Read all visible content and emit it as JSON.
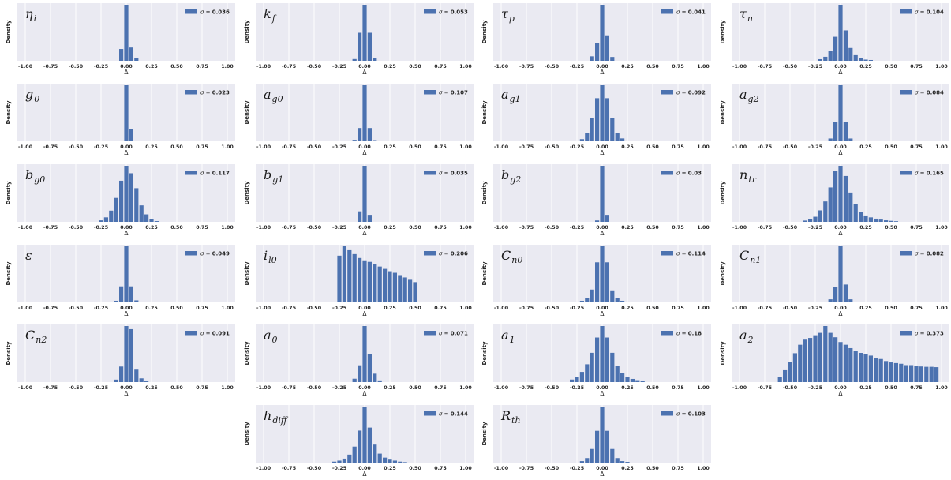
{
  "figure": {
    "y_label": "Density",
    "x_label": "Δ",
    "legend_symbol": "σ =",
    "bar_color": "#4C72B0",
    "background": "#EAEAF2",
    "x_ticks": [
      "-1.00",
      "-0.75",
      "-0.50",
      "-0.25",
      "0.00",
      "0.25",
      "0.50",
      "0.75",
      "1.00"
    ]
  },
  "chart_data": [
    {
      "type": "bar",
      "title_base": "η",
      "title_sub": "i",
      "sigma": "0.036",
      "xlim": [
        -1.0,
        1.0
      ],
      "grid": true,
      "legend_position": "top-right",
      "bin_width": 0.05,
      "bin_centers": [
        -0.05,
        0.0,
        0.05,
        0.1
      ],
      "densities": [
        4.0,
        19.0,
        4.5,
        0.8
      ]
    },
    {
      "type": "bar",
      "title_base": "k",
      "title_sub": "f",
      "sigma": "0.053",
      "xlim": [
        -1.0,
        1.0
      ],
      "grid": true,
      "legend_position": "top-right",
      "bin_width": 0.05,
      "bin_centers": [
        -0.1,
        -0.05,
        0.0,
        0.05,
        0.1
      ],
      "densities": [
        0.4,
        6.5,
        13.0,
        6.5,
        0.7
      ]
    },
    {
      "type": "bar",
      "title_base": "τ",
      "title_sub": "p",
      "sigma": "0.041",
      "xlim": [
        -1.0,
        1.0
      ],
      "grid": true,
      "legend_position": "top-right",
      "bin_width": 0.05,
      "bin_centers": [
        -0.1,
        -0.05,
        0.0,
        0.05,
        0.1
      ],
      "densities": [
        0.7,
        2.8,
        8.8,
        4.0,
        0.6
      ]
    },
    {
      "type": "bar",
      "title_base": "τ",
      "title_sub": "n",
      "sigma": "0.104",
      "xlim": [
        -1.0,
        1.0
      ],
      "grid": true,
      "legend_position": "top-right",
      "bin_width": 0.05,
      "bin_centers": [
        -0.2,
        -0.15,
        -0.1,
        -0.05,
        0.0,
        0.05,
        0.1,
        0.15,
        0.2,
        0.25,
        0.3
      ],
      "densities": [
        0.2,
        0.5,
        1.2,
        3.0,
        7.0,
        3.8,
        1.6,
        0.7,
        0.3,
        0.15,
        0.1
      ]
    },
    {
      "type": "bar",
      "title_base": "g",
      "title_sub": "0",
      "sigma": "0.023",
      "xlim": [
        -1.0,
        1.0
      ],
      "grid": true,
      "legend_position": "top-right",
      "bin_width": 0.05,
      "bin_centers": [
        0.0,
        0.05
      ],
      "densities": [
        30.0,
        6.5
      ]
    },
    {
      "type": "bar",
      "title_base": "a",
      "title_sub": "g0",
      "sigma": "0.107",
      "xlim": [
        -1.0,
        1.0
      ],
      "grid": true,
      "legend_position": "top-right",
      "bin_width": 0.05,
      "bin_centers": [
        -0.1,
        -0.05,
        0.0,
        0.05,
        0.1
      ],
      "densities": [
        0.5,
        4.5,
        19.0,
        4.5,
        0.4
      ]
    },
    {
      "type": "bar",
      "title_base": "a",
      "title_sub": "g1",
      "sigma": "0.092",
      "xlim": [
        -1.0,
        1.0
      ],
      "grid": true,
      "legend_position": "top-right",
      "bin_width": 0.05,
      "bin_centers": [
        -0.2,
        -0.15,
        -0.1,
        -0.05,
        0.0,
        0.05,
        0.1,
        0.15,
        0.2,
        0.25
      ],
      "densities": [
        0.3,
        1.2,
        3.2,
        6.0,
        7.8,
        6.0,
        3.2,
        1.2,
        0.4,
        0.1
      ]
    },
    {
      "type": "bar",
      "title_base": "a",
      "title_sub": "g2",
      "sigma": "0.084",
      "xlim": [
        -1.0,
        1.0
      ],
      "grid": true,
      "legend_position": "top-right",
      "bin_width": 0.05,
      "bin_centers": [
        -0.1,
        -0.05,
        0.0,
        0.05,
        0.1
      ],
      "densities": [
        0.5,
        3.5,
        10.0,
        3.5,
        0.5
      ]
    },
    {
      "type": "bar",
      "title_base": "b",
      "title_sub": "g0",
      "sigma": "0.117",
      "xlim": [
        -1.0,
        1.0
      ],
      "grid": true,
      "legend_position": "top-right",
      "bin_width": 0.05,
      "bin_centers": [
        -0.25,
        -0.2,
        -0.15,
        -0.1,
        -0.05,
        0.0,
        0.05,
        0.1,
        0.15,
        0.2,
        0.25,
        0.3
      ],
      "densities": [
        0.2,
        0.6,
        1.5,
        3.2,
        5.5,
        7.5,
        6.5,
        4.5,
        2.2,
        1.0,
        0.4,
        0.1
      ]
    },
    {
      "type": "bar",
      "title_base": "b",
      "title_sub": "g1",
      "sigma": "0.035",
      "xlim": [
        -1.0,
        1.0
      ],
      "grid": true,
      "legend_position": "top-right",
      "bin_width": 0.05,
      "bin_centers": [
        -0.05,
        0.0,
        0.05
      ],
      "densities": [
        3.0,
        16.0,
        2.0
      ]
    },
    {
      "type": "bar",
      "title_base": "b",
      "title_sub": "g2",
      "sigma": "0.03",
      "xlim": [
        -1.0,
        1.0
      ],
      "grid": true,
      "legend_position": "top-right",
      "bin_width": 0.05,
      "bin_centers": [
        -0.05,
        0.0,
        0.05
      ],
      "densities": [
        1.0,
        40.0,
        5.0
      ]
    },
    {
      "type": "bar",
      "title_base": "n",
      "title_sub": "tr",
      "sigma": "0.165",
      "xlim": [
        -1.0,
        1.0
      ],
      "grid": true,
      "legend_position": "top-right",
      "bin_width": 0.05,
      "bin_centers": [
        -0.35,
        -0.3,
        -0.25,
        -0.2,
        -0.15,
        -0.1,
        -0.05,
        0.0,
        0.05,
        0.1,
        0.15,
        0.2,
        0.25,
        0.3,
        0.35,
        0.4,
        0.45,
        0.5,
        0.55
      ],
      "densities": [
        0.1,
        0.2,
        0.4,
        0.9,
        1.6,
        2.7,
        4.0,
        4.4,
        3.6,
        2.3,
        1.4,
        0.8,
        0.5,
        0.35,
        0.25,
        0.18,
        0.12,
        0.08,
        0.05
      ]
    },
    {
      "type": "bar",
      "title_base": "ε",
      "title_sub": "",
      "sigma": "0.049",
      "xlim": [
        -1.0,
        1.0
      ],
      "grid": true,
      "legend_position": "top-right",
      "bin_width": 0.05,
      "bin_centers": [
        -0.1,
        -0.05,
        0.0,
        0.05,
        0.1
      ],
      "densities": [
        0.4,
        4.0,
        14.0,
        4.0,
        0.5
      ]
    },
    {
      "type": "bar",
      "title_base": "i",
      "title_sub": "l0",
      "sigma": "0.206",
      "xlim": [
        -1.0,
        1.0
      ],
      "grid": true,
      "legend_position": "top-right",
      "bin_width": 0.05,
      "bin_centers": [
        -0.25,
        -0.2,
        -0.15,
        -0.1,
        -0.05,
        0.0,
        0.05,
        0.1,
        0.15,
        0.2,
        0.25,
        0.3,
        0.35,
        0.4,
        0.45,
        0.5
      ],
      "densities": [
        3.0,
        3.6,
        3.35,
        3.1,
        2.85,
        2.7,
        2.6,
        2.45,
        2.3,
        2.15,
        2.0,
        1.9,
        1.75,
        1.6,
        1.45,
        1.3
      ]
    },
    {
      "type": "bar",
      "title_base": "C",
      "title_sub": "n0",
      "sigma": "0.114",
      "xlim": [
        -1.0,
        1.0
      ],
      "grid": true,
      "legend_position": "top-right",
      "bin_width": 0.05,
      "bin_centers": [
        -0.2,
        -0.15,
        -0.1,
        -0.05,
        0.0,
        0.05,
        0.1,
        0.15,
        0.2,
        0.25
      ],
      "densities": [
        0.2,
        0.5,
        1.6,
        5.0,
        7.0,
        5.0,
        1.5,
        0.5,
        0.2,
        0.1
      ]
    },
    {
      "type": "bar",
      "title_base": "C",
      "title_sub": "n1",
      "sigma": "0.082",
      "xlim": [
        -1.0,
        1.0
      ],
      "grid": true,
      "legend_position": "top-right",
      "bin_width": 0.05,
      "bin_centers": [
        -0.1,
        -0.05,
        0.0,
        0.05,
        0.1
      ],
      "densities": [
        0.6,
        3.0,
        11.0,
        3.5,
        0.6
      ]
    },
    {
      "type": "bar",
      "title_base": "C",
      "title_sub": "n2",
      "sigma": "0.091",
      "xlim": [
        -1.0,
        1.0
      ],
      "grid": true,
      "legend_position": "top-right",
      "bin_width": 0.05,
      "bin_centers": [
        -0.1,
        -0.05,
        0.0,
        0.05,
        0.1,
        0.15,
        0.2
      ],
      "densities": [
        0.4,
        2.5,
        9.0,
        8.5,
        2.0,
        0.6,
        0.2
      ]
    },
    {
      "type": "bar",
      "title_base": "a",
      "title_sub": "0",
      "sigma": "0.071",
      "xlim": [
        -1.0,
        1.0
      ],
      "grid": true,
      "legend_position": "top-right",
      "bin_width": 0.05,
      "bin_centers": [
        -0.1,
        -0.05,
        0.0,
        0.05,
        0.1,
        0.15
      ],
      "densities": [
        0.6,
        3.0,
        10.0,
        5.0,
        1.5,
        0.3
      ]
    },
    {
      "type": "bar",
      "title_base": "a",
      "title_sub": "1",
      "sigma": "0.18",
      "xlim": [
        -1.0,
        1.0
      ],
      "grid": true,
      "legend_position": "top-right",
      "bin_width": 0.05,
      "bin_centers": [
        -0.3,
        -0.25,
        -0.2,
        -0.15,
        -0.1,
        -0.05,
        0.0,
        0.05,
        0.1,
        0.15,
        0.2,
        0.25,
        0.3,
        0.35,
        0.4
      ],
      "densities": [
        0.2,
        0.4,
        0.8,
        1.4,
        2.3,
        3.5,
        4.4,
        3.5,
        2.3,
        1.3,
        0.7,
        0.4,
        0.25,
        0.15,
        0.1
      ]
    },
    {
      "type": "bar",
      "title_base": "a",
      "title_sub": "2",
      "sigma": "0.373",
      "xlim": [
        -1.0,
        1.0
      ],
      "grid": true,
      "legend_position": "top-right",
      "bin_width": 0.05,
      "bin_centers": [
        -0.6,
        -0.55,
        -0.5,
        -0.45,
        -0.4,
        -0.35,
        -0.3,
        -0.25,
        -0.2,
        -0.15,
        -0.1,
        -0.05,
        0.0,
        0.05,
        0.1,
        0.15,
        0.2,
        0.25,
        0.3,
        0.35,
        0.4,
        0.45,
        0.5,
        0.55,
        0.6,
        0.65,
        0.7,
        0.75,
        0.8,
        0.85,
        0.9,
        0.95
      ],
      "densities": [
        0.15,
        0.35,
        0.6,
        0.85,
        1.1,
        1.25,
        1.3,
        1.38,
        1.45,
        1.65,
        1.45,
        1.32,
        1.18,
        1.1,
        1.0,
        0.92,
        0.86,
        0.82,
        0.78,
        0.72,
        0.68,
        0.62,
        0.58,
        0.56,
        0.54,
        0.5,
        0.5,
        0.48,
        0.46,
        0.45,
        0.45,
        0.44
      ]
    },
    {
      "type": "bar",
      "title_base": "h",
      "title_sub": "diff",
      "sigma": "0.144",
      "xlim": [
        -1.0,
        1.0
      ],
      "grid": true,
      "legend_position": "top-right",
      "bin_width": 0.05,
      "bin_centers": [
        -0.3,
        -0.25,
        -0.2,
        -0.15,
        -0.1,
        -0.05,
        0.0,
        0.05,
        0.1,
        0.15,
        0.2,
        0.25,
        0.3,
        0.35,
        0.4
      ],
      "densities": [
        0.1,
        0.2,
        0.4,
        0.8,
        1.6,
        3.2,
        5.6,
        3.5,
        1.8,
        0.9,
        0.5,
        0.3,
        0.2,
        0.1,
        0.05
      ]
    },
    {
      "type": "bar",
      "title_base": "R",
      "title_sub": "th",
      "sigma": "0.103",
      "xlim": [
        -1.0,
        1.0
      ],
      "grid": true,
      "legend_position": "top-right",
      "bin_width": 0.05,
      "bin_centers": [
        -0.2,
        -0.15,
        -0.1,
        -0.05,
        0.0,
        0.05,
        0.1,
        0.15,
        0.2,
        0.25
      ],
      "densities": [
        0.2,
        0.6,
        1.8,
        4.2,
        7.4,
        4.2,
        1.8,
        0.6,
        0.2,
        0.1
      ]
    }
  ]
}
